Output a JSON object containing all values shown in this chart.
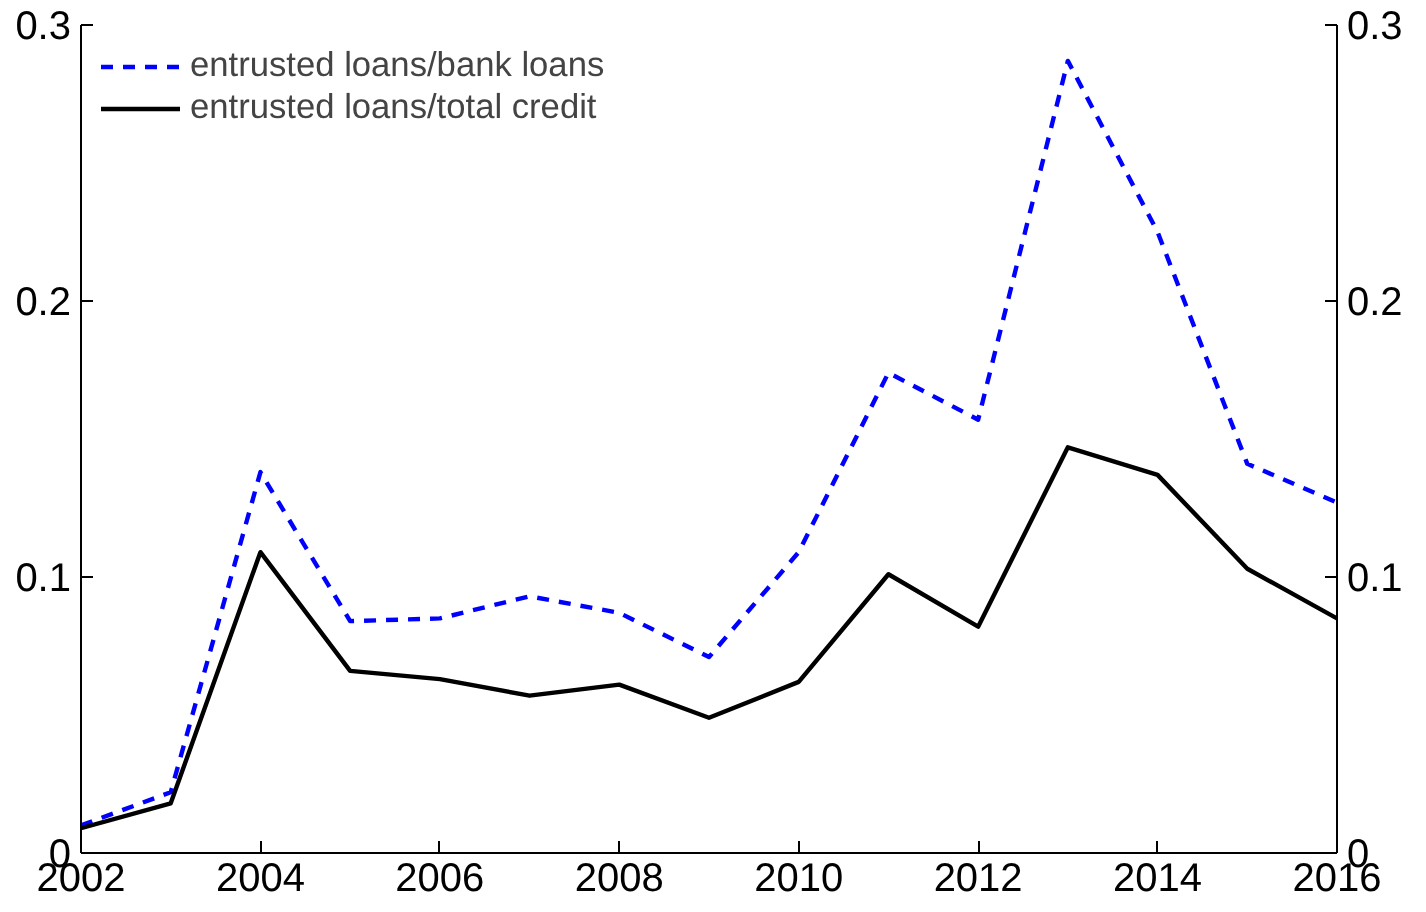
{
  "chart_data": {
    "type": "line",
    "x": [
      2002,
      2003,
      2004,
      2005,
      2006,
      2007,
      2008,
      2009,
      2010,
      2011,
      2012,
      2013,
      2014,
      2015,
      2016
    ],
    "series": [
      {
        "name": "entrusted loans/bank loans",
        "color": "#0000ff",
        "line_style": "dashed",
        "values": [
          0.01,
          0.022,
          0.138,
          0.084,
          0.085,
          0.093,
          0.087,
          0.071,
          0.109,
          0.174,
          0.157,
          0.287,
          0.225,
          0.141,
          0.127
        ]
      },
      {
        "name": "entrusted loans/total credit",
        "color": "#000000",
        "line_style": "solid",
        "values": [
          0.009,
          0.018,
          0.109,
          0.066,
          0.063,
          0.057,
          0.061,
          0.049,
          0.062,
          0.101,
          0.082,
          0.147,
          0.137,
          0.103,
          0.085
        ]
      }
    ],
    "xlim": [
      2002,
      2016
    ],
    "xticks": [
      2002,
      2004,
      2006,
      2008,
      2010,
      2012,
      2014,
      2016
    ],
    "ylim": [
      0,
      0.3
    ],
    "yticks": [
      0,
      0.1,
      0.2,
      0.3
    ],
    "y2lim": [
      0,
      0.3
    ],
    "y2ticks": [
      0,
      0.1,
      0.2,
      0.3
    ],
    "grid": false,
    "legend": "top left"
  }
}
